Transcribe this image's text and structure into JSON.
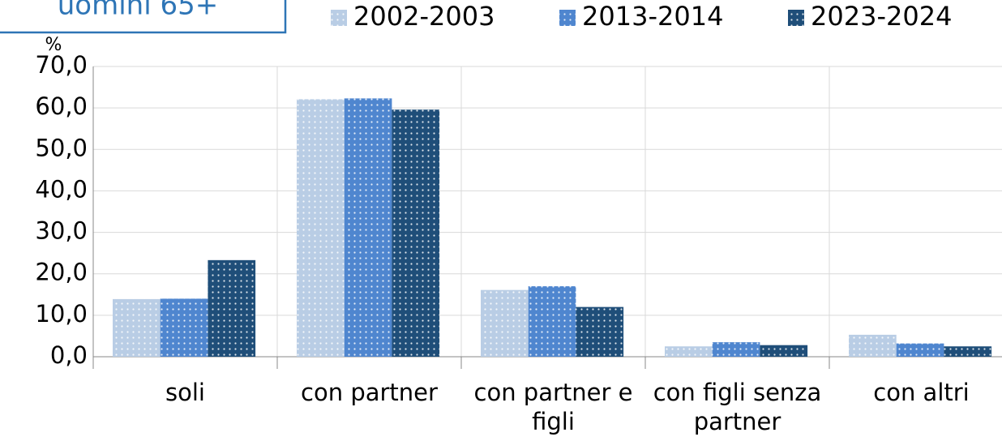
{
  "chart_data": {
    "type": "bar",
    "title": "uomini 65+",
    "y_label": "%",
    "categories": [
      "soli",
      "con partner",
      "con partner e figli",
      "con figli senza partner",
      "con altri"
    ],
    "series": [
      {
        "name": "2002-2003",
        "color": "#b9cde5",
        "values": [
          13.9,
          62.1,
          16.1,
          2.5,
          5.3
        ]
      },
      {
        "name": "2013-2014",
        "color": "#4f86cf",
        "values": [
          14.0,
          62.3,
          17.0,
          3.5,
          3.2
        ]
      },
      {
        "name": "2023-2024",
        "color": "#1f4e79",
        "values": [
          23.3,
          59.6,
          12.0,
          2.8,
          2.5
        ]
      }
    ],
    "ylim": [
      0,
      70
    ],
    "yticks": [
      {
        "value": 0,
        "label": "0,0"
      },
      {
        "value": 10,
        "label": "10,0"
      },
      {
        "value": 20,
        "label": "20,0"
      },
      {
        "value": 30,
        "label": "30,0"
      },
      {
        "value": 40,
        "label": "40,0"
      },
      {
        "value": 50,
        "label": "50,0"
      },
      {
        "value": 60,
        "label": "60,0"
      },
      {
        "value": 70,
        "label": "70,0"
      }
    ],
    "grid": true,
    "legend": "top"
  }
}
